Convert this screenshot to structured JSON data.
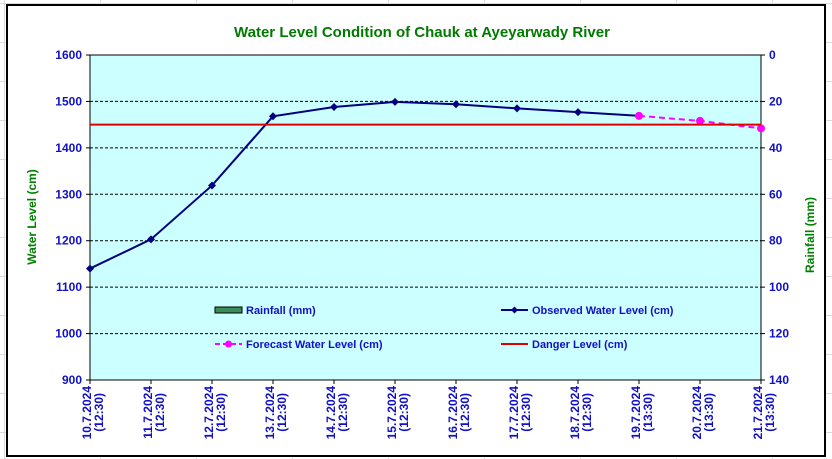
{
  "chart_data": {
    "type": "line",
    "title": "Water Level Condition of Chauk at Ayeyarwady River",
    "xlabel": "",
    "ylabel": "Water Level (cm)",
    "y2label": "Rainfall (mm)",
    "ylim": [
      900,
      1600
    ],
    "y_ticks": [
      900,
      1000,
      1100,
      1200,
      1300,
      1400,
      1500,
      1600
    ],
    "y2lim": [
      0,
      140
    ],
    "y2_inverted": true,
    "y2_ticks": [
      0,
      20,
      40,
      60,
      80,
      100,
      120,
      140
    ],
    "grid": true,
    "categories": [
      [
        "10.7.2024",
        "(12:30)"
      ],
      [
        "11.7.2024",
        "(12:30)"
      ],
      [
        "12.7.2024",
        "(12:30)"
      ],
      [
        "13.7.2024",
        "(12:30)"
      ],
      [
        "14.7.2024",
        "(12:30)"
      ],
      [
        "15.7.2024",
        "(12:30)"
      ],
      [
        "16.7.2024",
        "(12:30)"
      ],
      [
        "17.7.2024",
        "(12:30)"
      ],
      [
        "18.7.2024",
        "(12:30)"
      ],
      [
        "19.7.2024",
        "(13:30)"
      ],
      [
        "20.7.2024",
        "(13:30)"
      ],
      [
        "21.7.2024",
        "(13:30)"
      ]
    ],
    "series": [
      {
        "name": "Rainfall (mm)",
        "kind": "bar",
        "axis": "right",
        "color": "#3c8c5a",
        "values": [
          null,
          null,
          null,
          null,
          null,
          null,
          null,
          null,
          null,
          null,
          null,
          null
        ]
      },
      {
        "name": "Observed Water Level (cm)",
        "kind": "line",
        "axis": "left",
        "color": "#000080",
        "marker": "diamond",
        "values": [
          1140,
          1203,
          1319,
          1468,
          1488,
          1499,
          1494,
          1485,
          1477,
          1469,
          null,
          null
        ]
      },
      {
        "name": "Forecast Water Level (cm)",
        "kind": "line",
        "axis": "left",
        "color": "#ff00ff",
        "dashed": true,
        "marker": "circle",
        "values": [
          null,
          null,
          null,
          null,
          null,
          null,
          null,
          null,
          null,
          1469,
          1458,
          1442
        ]
      },
      {
        "name": "Danger Level (cm)",
        "kind": "line",
        "axis": "left",
        "color": "#e00000",
        "values": [
          1450,
          1450,
          1450,
          1450,
          1450,
          1450,
          1450,
          1450,
          1450,
          1450,
          1450,
          1450
        ]
      }
    ],
    "legend": {
      "placement": "inside-bottom",
      "entries": [
        "Rainfall (mm)",
        "Observed Water Level (cm)",
        "Forecast Water Level (cm)",
        "Danger Level (cm)"
      ]
    }
  },
  "colors": {
    "title": "#007a00",
    "axis_title": "#008000",
    "tick_label": "#1010c8",
    "plot_bg": "#ccffff",
    "legend_text": "#1010c8"
  }
}
